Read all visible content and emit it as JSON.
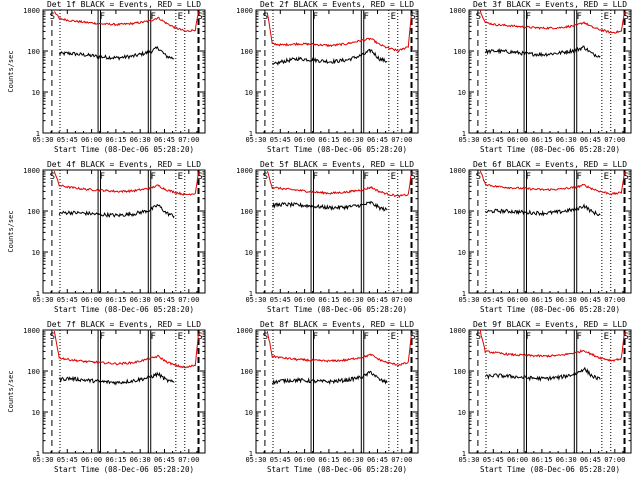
{
  "colors": {
    "events": "#000000",
    "lld": "#e00000",
    "axes": "#000000",
    "background": "#ffffff"
  },
  "chart_data": [
    {
      "type": "line",
      "title": "Det 1f BLACK = Events, RED = LLD",
      "xlabel": "Start Time (08-Dec-06 05:28:20)",
      "ylabel": "Counts/sec",
      "ylog": true,
      "ylim": [
        1,
        1000
      ],
      "xlim": [
        330,
        430
      ],
      "xticks": [
        "05:30",
        "05:45",
        "06:00",
        "06:15",
        "06:30",
        "06:45",
        "07:00"
      ],
      "yticks": [
        "1",
        "10",
        "100",
        "1000"
      ],
      "markers": [
        "S",
        "F",
        "F",
        "E",
        "S"
      ],
      "series": [
        {
          "name": "BLACK = Events",
          "x": [
            340,
            346,
            356,
            366,
            376,
            386,
            396,
            401,
            406,
            411
          ],
          "y": [
            85,
            88,
            80,
            72,
            68,
            75,
            95,
            120,
            75,
            65
          ]
        },
        {
          "name": "RED = LLD",
          "x": [
            337,
            340,
            346,
            356,
            366,
            376,
            386,
            396,
            401,
            406,
            411,
            418,
            424,
            426
          ],
          "y": [
            950,
            620,
            560,
            500,
            460,
            440,
            470,
            540,
            650,
            480,
            380,
            300,
            330,
            900
          ]
        }
      ]
    },
    {
      "type": "line",
      "title": "Det 2f BLACK = Events, RED = LLD",
      "xlabel": "Start Time (08-Dec-06 05:28:20)",
      "ylabel": "",
      "ylog": true,
      "ylim": [
        1,
        1000
      ],
      "xlim": [
        330,
        430
      ],
      "xticks": [
        "05:30",
        "05:45",
        "06:00",
        "06:15",
        "06:30",
        "06:45",
        "07:00"
      ],
      "yticks": [
        "1",
        "10",
        "100",
        "1000"
      ],
      "markers": [
        "S",
        "F",
        "F",
        "E",
        "S"
      ],
      "series": [
        {
          "name": "BLACK = Events",
          "x": [
            340,
            346,
            356,
            366,
            376,
            386,
            396,
            401,
            406,
            411
          ],
          "y": [
            45,
            55,
            65,
            60,
            55,
            60,
            80,
            105,
            65,
            55
          ]
        },
        {
          "name": "RED = LLD",
          "x": [
            337,
            340,
            346,
            356,
            366,
            376,
            386,
            396,
            401,
            406,
            411,
            418,
            424,
            426
          ],
          "y": [
            900,
            150,
            140,
            150,
            145,
            135,
            150,
            185,
            200,
            145,
            120,
            100,
            130,
            850
          ]
        }
      ]
    },
    {
      "type": "line",
      "title": "Det 3f BLACK = Events, RED = LLD",
      "xlabel": "Start Time (08-Dec-06 05:28:20)",
      "ylabel": "",
      "ylog": true,
      "ylim": [
        1,
        1000
      ],
      "xlim": [
        330,
        430
      ],
      "xticks": [
        "05:30",
        "05:45",
        "06:00",
        "06:15",
        "06:30",
        "06:45",
        "07:00"
      ],
      "yticks": [
        "1",
        "10",
        "100",
        "1000"
      ],
      "markers": [
        "S",
        "F",
        "F",
        "E",
        "S"
      ],
      "series": [
        {
          "name": "BLACK = Events",
          "x": [
            340,
            346,
            356,
            366,
            376,
            386,
            396,
            401,
            406,
            411
          ],
          "y": [
            95,
            100,
            95,
            85,
            82,
            90,
            105,
            125,
            85,
            75
          ]
        },
        {
          "name": "RED = LLD",
          "x": [
            337,
            340,
            346,
            356,
            366,
            376,
            386,
            396,
            401,
            406,
            411,
            418,
            424,
            426
          ],
          "y": [
            950,
            500,
            440,
            410,
            380,
            360,
            370,
            420,
            500,
            380,
            330,
            280,
            300,
            880
          ]
        }
      ]
    },
    {
      "type": "line",
      "title": "Det 4f BLACK = Events, RED = LLD",
      "xlabel": "Start Time (08-Dec-06 05:28:20)",
      "ylabel": "Counts/sec",
      "ylog": true,
      "ylim": [
        1,
        1000
      ],
      "xlim": [
        330,
        430
      ],
      "xticks": [
        "05:30",
        "05:45",
        "06:00",
        "06:15",
        "06:30",
        "06:45",
        "07:00"
      ],
      "yticks": [
        "1",
        "10",
        "100",
        "1000"
      ],
      "markers": [
        "S",
        "F",
        "F",
        "E",
        "S"
      ],
      "series": [
        {
          "name": "BLACK = Events",
          "x": [
            340,
            346,
            356,
            366,
            376,
            386,
            396,
            401,
            406,
            411
          ],
          "y": [
            88,
            92,
            88,
            82,
            78,
            85,
            105,
            140,
            90,
            75
          ]
        },
        {
          "name": "RED = LLD",
          "x": [
            337,
            340,
            346,
            356,
            366,
            376,
            386,
            396,
            401,
            406,
            411,
            418,
            424,
            426
          ],
          "y": [
            950,
            420,
            380,
            340,
            320,
            300,
            310,
            360,
            420,
            330,
            290,
            250,
            270,
            880
          ]
        }
      ]
    },
    {
      "type": "line",
      "title": "Det 5f BLACK = Events, RED = LLD",
      "xlabel": "Start Time (08-Dec-06 05:28:20)",
      "ylabel": "",
      "ylog": true,
      "ylim": [
        1,
        1000
      ],
      "xlim": [
        330,
        430
      ],
      "xticks": [
        "05:30",
        "05:45",
        "06:00",
        "06:15",
        "06:30",
        "06:45",
        "07:00"
      ],
      "yticks": [
        "1",
        "10",
        "100",
        "1000"
      ],
      "markers": [
        "S",
        "F",
        "F",
        "E",
        "S"
      ],
      "series": [
        {
          "name": "BLACK = Events",
          "x": [
            340,
            346,
            356,
            366,
            376,
            386,
            396,
            401,
            406,
            411
          ],
          "y": [
            135,
            145,
            140,
            130,
            120,
            125,
            140,
            160,
            120,
            105
          ]
        },
        {
          "name": "RED = LLD",
          "x": [
            337,
            340,
            346,
            356,
            366,
            376,
            386,
            396,
            401,
            406,
            411,
            418,
            424,
            426
          ],
          "y": [
            950,
            380,
            350,
            320,
            290,
            270,
            290,
            330,
            380,
            300,
            260,
            230,
            250,
            880
          ]
        }
      ]
    },
    {
      "type": "line",
      "title": "Det 6f BLACK = Events, RED = LLD",
      "xlabel": "Start Time (08-Dec-06 05:28:20)",
      "ylabel": "",
      "ylog": true,
      "ylim": [
        1,
        1000
      ],
      "xlim": [
        330,
        430
      ],
      "xticks": [
        "05:30",
        "05:45",
        "06:00",
        "06:15",
        "06:30",
        "06:45",
        "07:00"
      ],
      "yticks": [
        "1",
        "10",
        "100",
        "1000"
      ],
      "markers": [
        "S",
        "F",
        "F",
        "E",
        "S"
      ],
      "series": [
        {
          "name": "BLACK = Events",
          "x": [
            340,
            346,
            356,
            366,
            376,
            386,
            396,
            401,
            406,
            411
          ],
          "y": [
            95,
            100,
            98,
            92,
            88,
            95,
            110,
            135,
            95,
            80
          ]
        },
        {
          "name": "RED = LLD",
          "x": [
            337,
            340,
            346,
            356,
            366,
            376,
            386,
            396,
            401,
            406,
            411,
            418,
            424,
            426
          ],
          "y": [
            950,
            450,
            400,
            370,
            350,
            330,
            340,
            380,
            430,
            350,
            300,
            260,
            280,
            880
          ]
        }
      ]
    },
    {
      "type": "line",
      "title": "Det 7f BLACK = Events, RED = LLD",
      "xlabel": "Start Time (08-Dec-06 05:28:20)",
      "ylabel": "Counts/sec",
      "ylog": true,
      "ylim": [
        1,
        1000
      ],
      "xlim": [
        330,
        430
      ],
      "xticks": [
        "05:30",
        "05:45",
        "06:00",
        "06:15",
        "06:30",
        "06:45",
        "07:00"
      ],
      "yticks": [
        "1",
        "10",
        "100",
        "1000"
      ],
      "markers": [
        "S",
        "F",
        "F",
        "E",
        "S"
      ],
      "series": [
        {
          "name": "BLACK = Events",
          "x": [
            340,
            346,
            356,
            366,
            376,
            386,
            396,
            401,
            406,
            411
          ],
          "y": [
            62,
            66,
            60,
            55,
            52,
            58,
            70,
            85,
            60,
            52
          ]
        },
        {
          "name": "RED = LLD",
          "x": [
            337,
            340,
            346,
            356,
            366,
            376,
            386,
            396,
            401,
            406,
            411,
            418,
            424,
            426
          ],
          "y": [
            950,
            210,
            190,
            170,
            160,
            150,
            160,
            200,
            230,
            170,
            140,
            120,
            140,
            850
          ]
        }
      ]
    },
    {
      "type": "line",
      "title": "Det 8f BLACK = Events, RED = LLD",
      "xlabel": "Start Time (08-Dec-06 05:28:20)",
      "ylabel": "",
      "ylog": true,
      "ylim": [
        1,
        1000
      ],
      "xlim": [
        330,
        430
      ],
      "xticks": [
        "05:30",
        "05:45",
        "06:00",
        "06:15",
        "06:30",
        "06:45",
        "07:00"
      ],
      "yticks": [
        "1",
        "10",
        "100",
        "1000"
      ],
      "markers": [
        "S",
        "F",
        "F",
        "E",
        "S"
      ],
      "series": [
        {
          "name": "BLACK = Events",
          "x": [
            340,
            346,
            356,
            366,
            376,
            386,
            396,
            401,
            406,
            411
          ],
          "y": [
            52,
            58,
            60,
            56,
            55,
            60,
            72,
            95,
            62,
            52
          ]
        },
        {
          "name": "RED = LLD",
          "x": [
            337,
            340,
            346,
            356,
            366,
            376,
            386,
            396,
            401,
            406,
            411,
            418,
            424,
            426
          ],
          "y": [
            950,
            230,
            210,
            190,
            180,
            175,
            185,
            220,
            250,
            190,
            160,
            140,
            160,
            860
          ]
        }
      ]
    },
    {
      "type": "line",
      "title": "Det 9f BLACK = Events, RED = LLD",
      "xlabel": "Start Time (08-Dec-06 05:28:20)",
      "ylabel": "",
      "ylog": true,
      "ylim": [
        1,
        1000
      ],
      "xlim": [
        330,
        430
      ],
      "xticks": [
        "05:30",
        "05:45",
        "06:00",
        "06:15",
        "06:30",
        "06:45",
        "07:00"
      ],
      "yticks": [
        "1",
        "10",
        "100",
        "1000"
      ],
      "markers": [
        "S",
        "F",
        "F",
        "E",
        "S"
      ],
      "series": [
        {
          "name": "BLACK = Events",
          "x": [
            340,
            346,
            356,
            366,
            376,
            386,
            396,
            401,
            406,
            411
          ],
          "y": [
            72,
            78,
            74,
            68,
            65,
            70,
            85,
            115,
            75,
            62
          ]
        },
        {
          "name": "RED = LLD",
          "x": [
            337,
            340,
            346,
            356,
            366,
            376,
            386,
            396,
            401,
            406,
            411,
            418,
            424,
            426
          ],
          "y": [
            950,
            300,
            280,
            250,
            240,
            230,
            240,
            280,
            320,
            250,
            210,
            180,
            200,
            870
          ]
        }
      ]
    }
  ]
}
